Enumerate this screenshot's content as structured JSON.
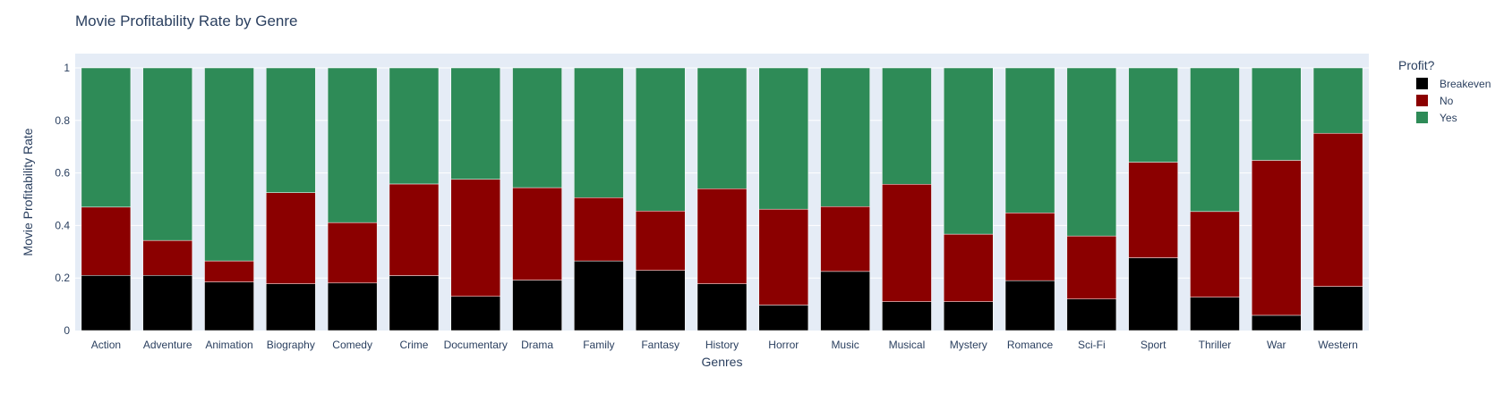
{
  "chart_data": {
    "type": "bar",
    "stacked": true,
    "title": "Movie Profitability Rate by Genre",
    "xlabel": "Genres",
    "ylabel": "Movie Profitability Rate",
    "ylim": [
      0,
      1
    ],
    "yticks": [
      0,
      0.2,
      0.4,
      0.6,
      0.8,
      1
    ],
    "ytick_labels": [
      "0",
      "0.2",
      "0.4",
      "0.6",
      "0.8",
      "1"
    ],
    "grid": true,
    "legend_title": "Profit?",
    "legend_position": "top-right",
    "categories": [
      "Action",
      "Adventure",
      "Animation",
      "Biography",
      "Comedy",
      "Crime",
      "Documentary",
      "Drama",
      "Family",
      "Fantasy",
      "History",
      "Horror",
      "Music",
      "Musical",
      "Mystery",
      "Romance",
      "Sci-Fi",
      "Sport",
      "Thriller",
      "War",
      "Western"
    ],
    "series": [
      {
        "name": "Breakeven",
        "color": "#000000",
        "values": [
          0.21,
          0.21,
          0.185,
          0.178,
          0.181,
          0.209,
          0.13,
          0.192,
          0.265,
          0.229,
          0.178,
          0.097,
          0.225,
          0.11,
          0.11,
          0.19,
          0.12,
          0.277,
          0.127,
          0.058,
          0.168
        ]
      },
      {
        "name": "No",
        "color": "#8b0000",
        "values": [
          0.26,
          0.133,
          0.08,
          0.347,
          0.23,
          0.349,
          0.446,
          0.352,
          0.241,
          0.226,
          0.362,
          0.365,
          0.247,
          0.447,
          0.257,
          0.258,
          0.24,
          0.364,
          0.326,
          0.59,
          0.583
        ]
      },
      {
        "name": "Yes",
        "color": "#2e8b57",
        "values": [
          0.53,
          0.657,
          0.735,
          0.475,
          0.589,
          0.442,
          0.424,
          0.456,
          0.494,
          0.545,
          0.46,
          0.538,
          0.528,
          0.443,
          0.633,
          0.552,
          0.64,
          0.359,
          0.547,
          0.352,
          0.249
        ]
      }
    ]
  }
}
